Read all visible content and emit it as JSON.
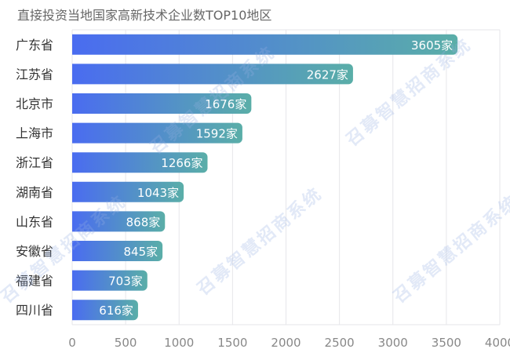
{
  "chart_data": {
    "type": "bar",
    "orientation": "horizontal",
    "title": "直接投资当地国家高新技术企业数TOP10地区",
    "categories": [
      "广东省",
      "江苏省",
      "北京市",
      "上海市",
      "浙江省",
      "湖南省",
      "山东省",
      "安徽省",
      "福建省",
      "四川省"
    ],
    "values": [
      3605,
      2627,
      1676,
      1592,
      1266,
      1043,
      868,
      845,
      703,
      616
    ],
    "value_suffix": "家",
    "xlim": [
      0,
      4000
    ],
    "xticks": [
      0,
      500,
      1000,
      1500,
      2000,
      2500,
      3000,
      3500,
      4000
    ],
    "grid": true,
    "bar_gradient": [
      "#4a6cf0",
      "#5aaea8"
    ],
    "watermark": "召募智慧招商系统"
  }
}
